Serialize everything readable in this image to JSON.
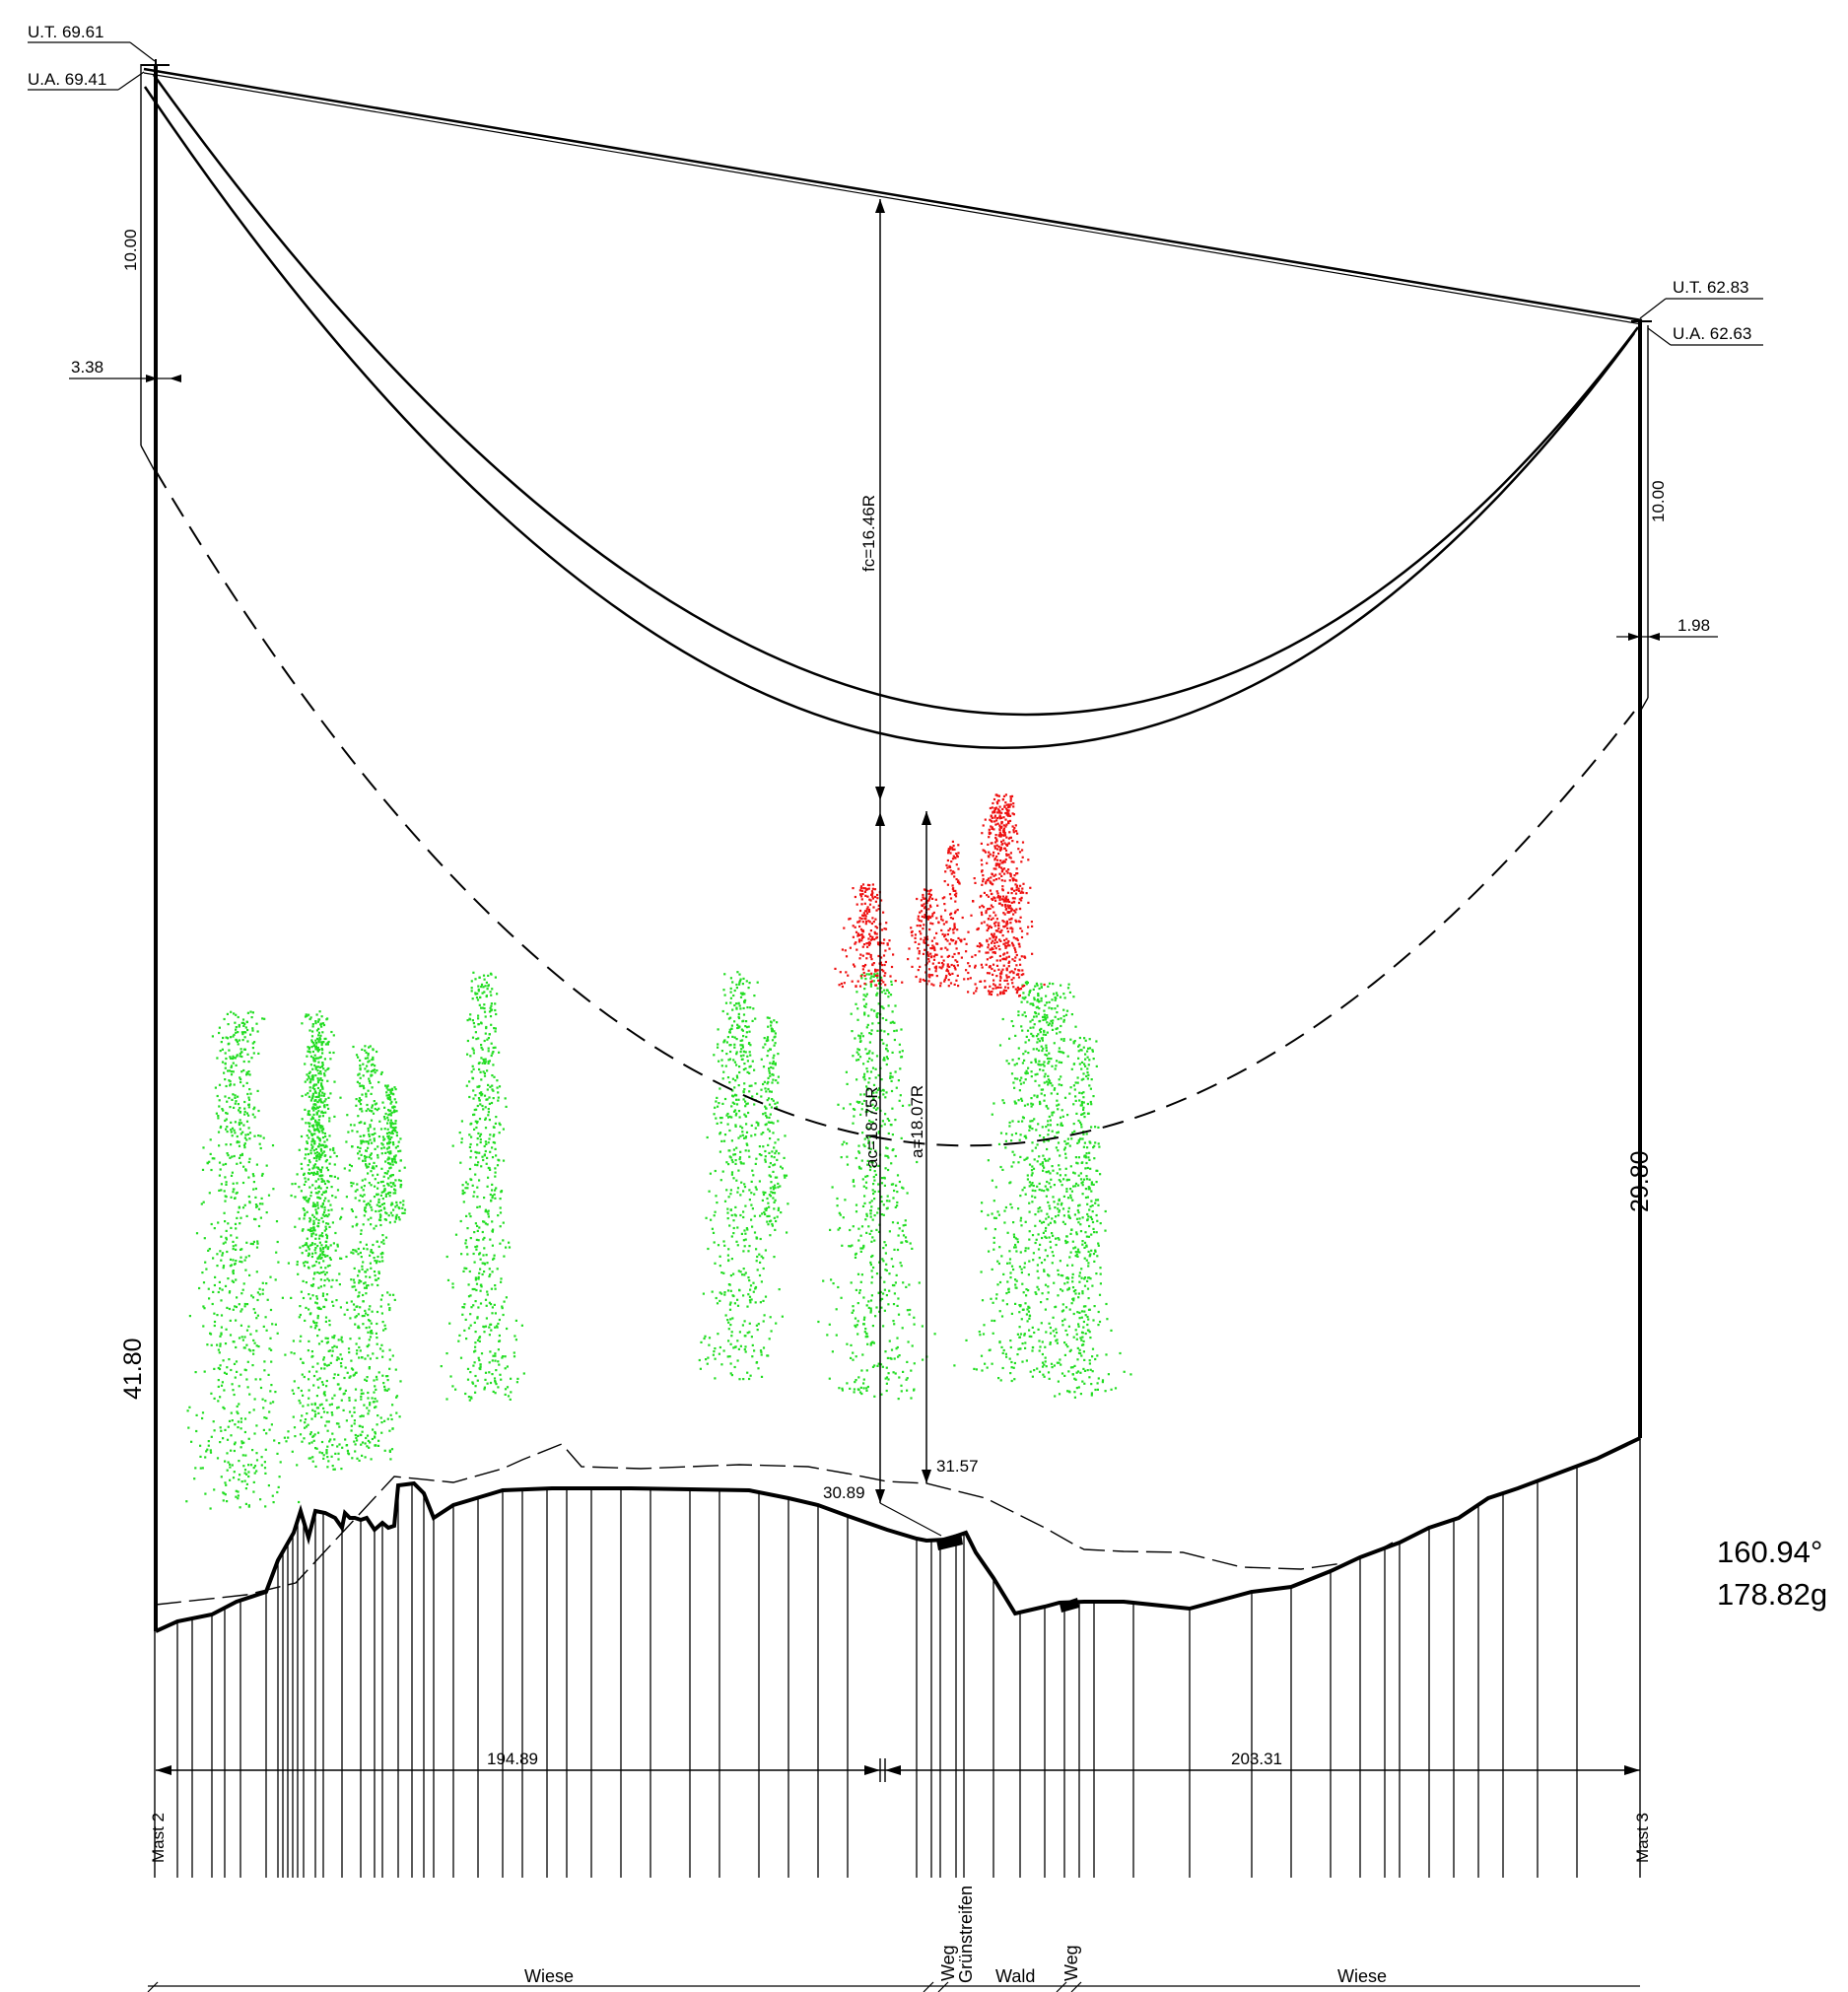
{
  "mast_left": {
    "ut_label": "U.T. 69.61",
    "ua_label": "U.A. 69.41",
    "insulator_length": "10.00",
    "offset": "3.38",
    "height": "41.80",
    "name": "Mast 2"
  },
  "mast_right": {
    "ut_label": "U.T. 62.83",
    "ua_label": "U.A. 62.63",
    "insulator_length": "10.00",
    "offset": "1.98",
    "height": "29.80",
    "name": "Mast 3"
  },
  "sag": {
    "fc_label": "fc=16.46R",
    "ac_label": "ac=18.75R",
    "a_label": "a=18.07R",
    "ground_left": "30.89",
    "ground_right": "31.57"
  },
  "spans": {
    "left": "194.89",
    "right": "203.31"
  },
  "angles": {
    "degrees": "160.94°",
    "gon": "178.82g"
  },
  "land_use": {
    "wiese_left": "Wiese",
    "weg_1": "Weg",
    "gruenstreifen": "Grünstreifen",
    "wald": "Wald",
    "weg_2": "Weg",
    "wiese_right": "Wiese"
  },
  "colors": {
    "line": "#000000",
    "vegetation_ok": "#22dd22",
    "vegetation_conflict": "#ee1111"
  }
}
